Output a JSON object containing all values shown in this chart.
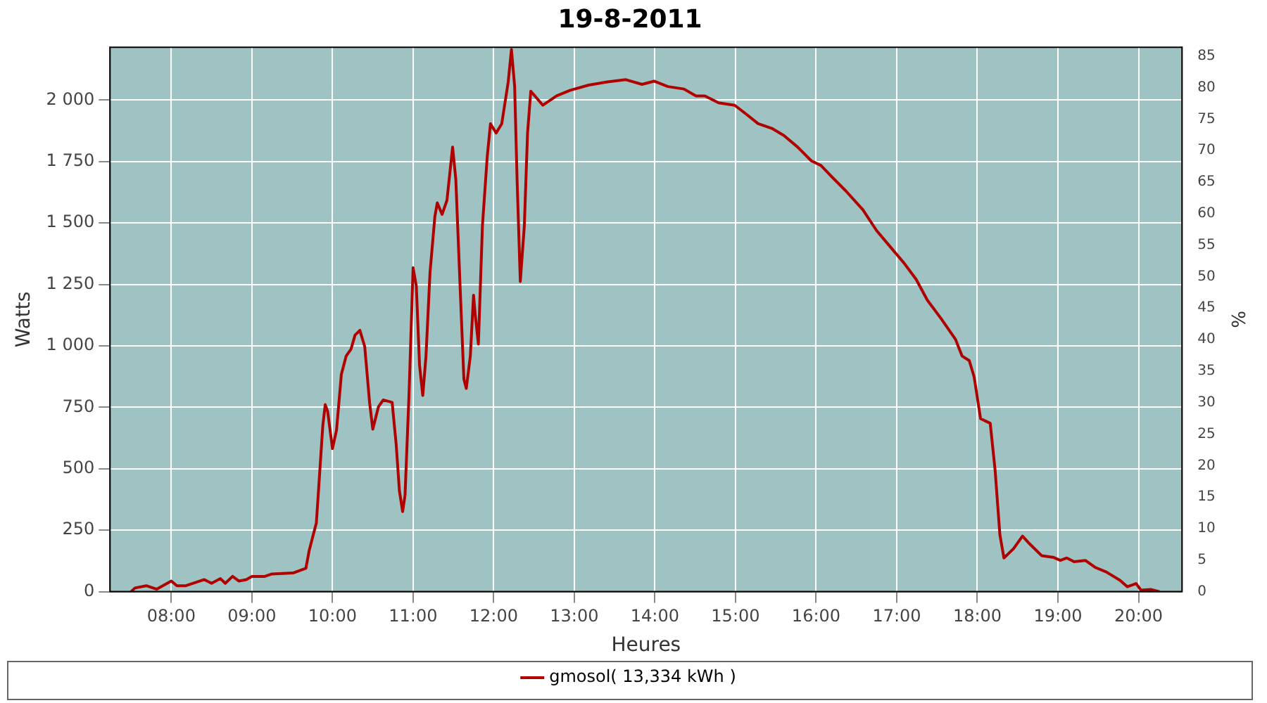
{
  "chart_data": {
    "type": "line",
    "title": "19-8-2011",
    "xlabel": "Heures",
    "ylabel": "Watts",
    "y2label": "%",
    "xlim": [
      7.24,
      20.54
    ],
    "ylim": [
      0,
      2215
    ],
    "y2lim": [
      0,
      86.4
    ],
    "xticks": [
      {
        "value": 8,
        "label": "08:00"
      },
      {
        "value": 9,
        "label": "09:00"
      },
      {
        "value": 10,
        "label": "10:00"
      },
      {
        "value": 11,
        "label": "11:00"
      },
      {
        "value": 12,
        "label": "12:00"
      },
      {
        "value": 13,
        "label": "13:00"
      },
      {
        "value": 14,
        "label": "14:00"
      },
      {
        "value": 15,
        "label": "15:00"
      },
      {
        "value": 16,
        "label": "16:00"
      },
      {
        "value": 17,
        "label": "17:00"
      },
      {
        "value": 18,
        "label": "18:00"
      },
      {
        "value": 19,
        "label": "19:00"
      },
      {
        "value": 20,
        "label": "20:00"
      }
    ],
    "yticks": [
      0,
      250,
      500,
      750,
      {
        "value": 1000,
        "label": "1 000"
      },
      {
        "value": 1250,
        "label": "1 250"
      },
      {
        "value": 1500,
        "label": "1 500"
      },
      {
        "value": 1750,
        "label": "1 750"
      },
      {
        "value": 2000,
        "label": "2 000"
      }
    ],
    "y2ticks": [
      0,
      5,
      10,
      15,
      20,
      25,
      30,
      35,
      40,
      45,
      50,
      55,
      60,
      65,
      70,
      75,
      80,
      85
    ],
    "grid": true,
    "legend": "bottom",
    "marker": "none",
    "line_style": "solid",
    "series": [
      {
        "name": "gmosol( 13,334 kWh )",
        "color": "#b00000",
        "x": [
          7.5,
          7.55,
          7.69,
          7.82,
          8.0,
          8.07,
          8.18,
          8.41,
          8.5,
          8.61,
          8.67,
          8.76,
          8.84,
          8.93,
          9.0,
          9.16,
          9.25,
          9.51,
          9.67,
          9.71,
          9.8,
          9.84,
          9.88,
          9.91,
          9.94,
          10.0,
          10.05,
          10.11,
          10.17,
          10.23,
          10.28,
          10.34,
          10.4,
          10.46,
          10.5,
          10.57,
          10.63,
          10.74,
          10.79,
          10.83,
          10.87,
          10.9,
          10.95,
          11.0,
          11.04,
          11.08,
          11.12,
          11.16,
          11.21,
          11.27,
          11.3,
          11.36,
          11.42,
          11.49,
          11.53,
          11.59,
          11.63,
          11.66,
          11.71,
          11.75,
          11.77,
          11.81,
          11.86,
          11.92,
          11.96,
          12.03,
          12.1,
          12.18,
          12.22,
          12.26,
          12.29,
          12.33,
          12.38,
          12.42,
          12.46,
          12.61,
          12.78,
          12.95,
          13.18,
          13.41,
          13.64,
          13.84,
          13.99,
          14.16,
          14.36,
          14.51,
          14.62,
          14.79,
          14.99,
          15.14,
          15.28,
          15.45,
          15.6,
          15.77,
          15.94,
          16.06,
          16.2,
          16.37,
          16.58,
          16.75,
          16.92,
          17.09,
          17.24,
          17.38,
          17.55,
          17.73,
          17.81,
          17.9,
          17.96,
          18.04,
          18.16,
          18.22,
          18.28,
          18.33,
          18.45,
          18.56,
          18.65,
          18.8,
          18.94,
          19.03,
          19.11,
          19.2,
          19.34,
          19.46,
          19.6,
          19.77,
          19.86,
          19.97,
          20.03,
          20.15,
          20.26
        ],
        "values": [
          0,
          15,
          24,
          10,
          43,
          24,
          24,
          49,
          34,
          53,
          34,
          62,
          43,
          49,
          62,
          62,
          72,
          76,
          95,
          166,
          280,
          478,
          676,
          761,
          733,
          582,
          657,
          884,
          959,
          987,
          1044,
          1063,
          997,
          770,
          661,
          752,
          780,
          770,
          600,
          411,
          326,
          392,
          808,
          1318,
          1243,
          921,
          798,
          959,
          1299,
          1526,
          1582,
          1535,
          1592,
          1809,
          1677,
          1186,
          865,
          827,
          959,
          1206,
          1130,
          1007,
          1488,
          1771,
          1904,
          1866,
          1904,
          2074,
          2206,
          2055,
          1677,
          1262,
          1488,
          1866,
          2036,
          1979,
          2017,
          2040,
          2061,
          2074,
          2083,
          2064,
          2077,
          2055,
          2045,
          2017,
          2017,
          1989,
          1979,
          1941,
          1904,
          1885,
          1856,
          1809,
          1753,
          1734,
          1686,
          1630,
          1554,
          1469,
          1403,
          1337,
          1271,
          1186,
          1111,
          1026,
          959,
          940,
          874,
          704,
          685,
          496,
          231,
          137,
          175,
          226,
          194,
          146,
          140,
          127,
          137,
          122,
          127,
          99,
          80,
          46,
          20,
          33,
          6,
          9,
          0
        ]
      }
    ]
  }
}
